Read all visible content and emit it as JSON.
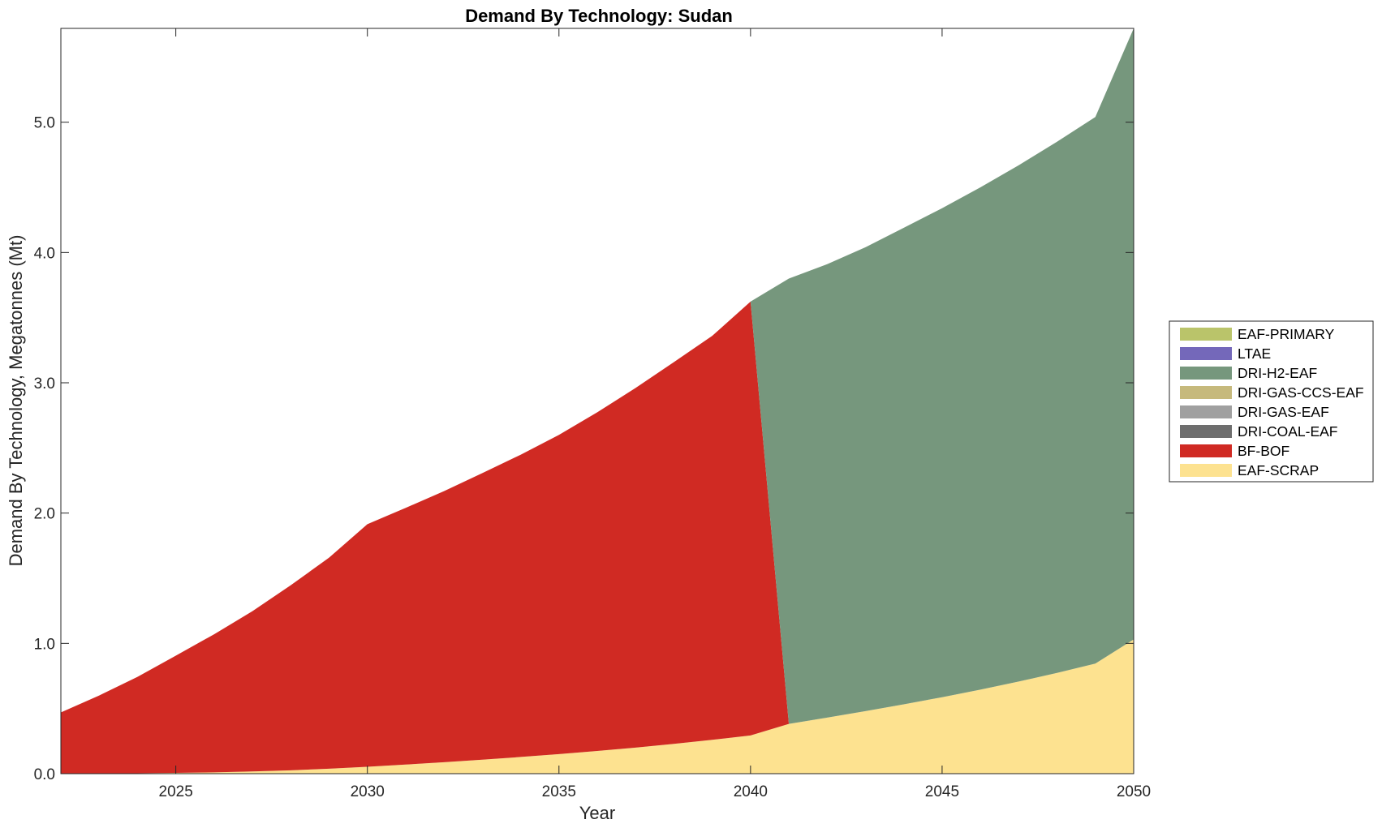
{
  "chart_data": {
    "type": "area",
    "stacked": true,
    "title": "Demand By Technology: Sudan",
    "xlabel": "Year",
    "ylabel": "Demand By Technology, Megatonnes (Mt)",
    "xlim": [
      2022,
      2050
    ],
    "ylim": [
      0,
      5.72
    ],
    "xticks": [
      2025,
      2030,
      2035,
      2040,
      2045,
      2050
    ],
    "xtick_labels": [
      "2025",
      "2030",
      "2035",
      "2040",
      "2045",
      "2050"
    ],
    "yticks": [
      0,
      1,
      2,
      3,
      4,
      5
    ],
    "ytick_labels": [
      "0.0",
      "1.0",
      "2.0",
      "3.0",
      "4.0",
      "5.0"
    ],
    "grid": false,
    "legend_position": "right",
    "x": [
      2022,
      2023,
      2024,
      2025,
      2026,
      2027,
      2028,
      2029,
      2030,
      2031,
      2032,
      2033,
      2034,
      2035,
      2036,
      2037,
      2038,
      2039,
      2040,
      2041,
      2042,
      2043,
      2044,
      2045,
      2046,
      2047,
      2048,
      2049,
      2050
    ],
    "series": [
      {
        "name": "EAF-SCRAP",
        "color": "#FDE290",
        "values": [
          0.0,
          0.0,
          0.003,
          0.006,
          0.01,
          0.017,
          0.026,
          0.038,
          0.053,
          0.07,
          0.088,
          0.107,
          0.128,
          0.15,
          0.174,
          0.2,
          0.229,
          0.26,
          0.293,
          0.382,
          0.43,
          0.48,
          0.532,
          0.587,
          0.645,
          0.707,
          0.773,
          0.845,
          1.03
        ]
      },
      {
        "name": "BF-BOF",
        "color": "#D02A23",
        "values": [
          0.47,
          0.6,
          0.74,
          0.9,
          1.06,
          1.23,
          1.42,
          1.62,
          1.862,
          1.97,
          2.08,
          2.2,
          2.32,
          2.45,
          2.6,
          2.76,
          2.93,
          3.1,
          3.33,
          0,
          0,
          0,
          0,
          0,
          0,
          0,
          0,
          0,
          0
        ]
      },
      {
        "name": "DRI-COAL-EAF",
        "color": "#6E6E6E",
        "values": [
          0,
          0,
          0,
          0,
          0,
          0,
          0,
          0,
          0,
          0,
          0,
          0,
          0,
          0,
          0,
          0,
          0,
          0,
          0,
          0,
          0,
          0,
          0,
          0,
          0,
          0,
          0,
          0,
          0
        ]
      },
      {
        "name": "DRI-GAS-EAF",
        "color": "#A0A0A0",
        "values": [
          0,
          0,
          0,
          0,
          0,
          0,
          0,
          0,
          0,
          0,
          0,
          0,
          0,
          0,
          0,
          0,
          0,
          0,
          0,
          0,
          0,
          0,
          0,
          0,
          0,
          0,
          0,
          0,
          0
        ]
      },
      {
        "name": "DRI-GAS-CCS-EAF",
        "color": "#C6B97C",
        "values": [
          0,
          0,
          0,
          0,
          0,
          0,
          0,
          0,
          0,
          0,
          0,
          0,
          0,
          0,
          0,
          0,
          0,
          0,
          0,
          0,
          0,
          0,
          0,
          0,
          0,
          0,
          0,
          0,
          0
        ]
      },
      {
        "name": "DRI-H2-EAF",
        "color": "#76977D",
        "values": [
          0,
          0,
          0,
          0,
          0,
          0,
          0,
          0,
          0,
          0,
          0,
          0,
          0,
          0,
          0,
          0,
          0,
          0,
          0,
          3.418,
          3.48,
          3.56,
          3.658,
          3.753,
          3.855,
          3.963,
          4.077,
          4.195,
          4.69
        ]
      },
      {
        "name": "LTAE",
        "color": "#7468BA",
        "values": [
          0,
          0,
          0,
          0,
          0,
          0,
          0,
          0,
          0,
          0,
          0,
          0,
          0,
          0,
          0,
          0,
          0,
          0,
          0,
          0,
          0,
          0,
          0,
          0,
          0,
          0,
          0,
          0,
          0
        ]
      },
      {
        "name": "EAF-PRIMARY",
        "color": "#BAC46A",
        "values": [
          0,
          0,
          0,
          0,
          0,
          0,
          0,
          0,
          0,
          0,
          0,
          0,
          0,
          0,
          0,
          0,
          0,
          0,
          0,
          0,
          0,
          0,
          0,
          0,
          0,
          0,
          0,
          0,
          0
        ]
      }
    ],
    "legend_order": [
      "EAF-PRIMARY",
      "LTAE",
      "DRI-H2-EAF",
      "DRI-GAS-CCS-EAF",
      "DRI-GAS-EAF",
      "DRI-COAL-EAF",
      "BF-BOF",
      "EAF-SCRAP"
    ]
  }
}
